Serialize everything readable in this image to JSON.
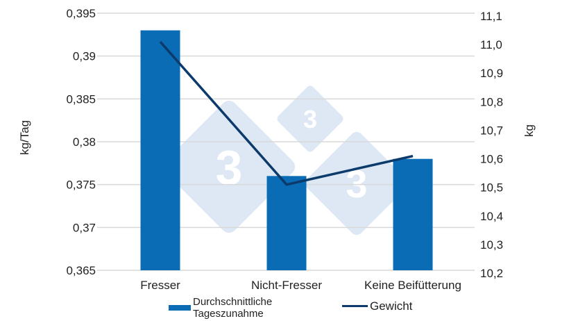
{
  "chart_data": {
    "type": "bar+line",
    "title": "",
    "categories": [
      "Fresser",
      "Nicht-Fresser",
      "Keine Beifütterung"
    ],
    "series": [
      {
        "name": "Durchschnittliche Tageszunahme",
        "type": "bar",
        "axis": "left",
        "values": [
          0.393,
          0.376,
          0.378
        ],
        "color": "#0a6cb4"
      },
      {
        "name": "Gewicht",
        "type": "line",
        "axis": "right",
        "values": [
          11.0,
          10.5,
          10.6
        ],
        "color": "#0b3a6b"
      }
    ],
    "left_axis": {
      "label": "kg/Tag",
      "ylim": [
        0.365,
        0.395
      ],
      "ticks": [
        "0,395",
        "0,39",
        "0,385",
        "0,38",
        "0,375",
        "0,37",
        "0,365"
      ]
    },
    "right_axis": {
      "label": "kg",
      "ylim": [
        10.2,
        11.1
      ],
      "ticks": [
        "11,1",
        "11,0",
        "10,9",
        "10,8",
        "10,7",
        "10,6",
        "10,5",
        "10,4",
        "10,3",
        "10,2"
      ]
    },
    "grid": true,
    "legend_position": "bottom"
  },
  "legend": {
    "bar_label_line1": "Durchschnittliche",
    "bar_label_line2": "Tageszunahme",
    "line_label": "Gewicht"
  },
  "colors": {
    "bar": "#0a6cb4",
    "line": "#0b3a6b",
    "grid": "#d9d9d9",
    "watermark": "#dde8f4"
  },
  "watermark": {
    "glyph": "3"
  }
}
